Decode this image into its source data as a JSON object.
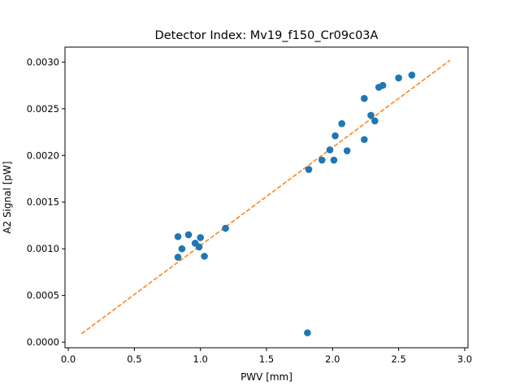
{
  "chart_data": {
    "type": "scatter",
    "title": "Detector Index: Mv19_f150_Cr09c03A",
    "xlabel": "PWV [mm]",
    "ylabel": "A2 Signal [pW]",
    "xlim": [
      -0.025,
      3.025
    ],
    "ylim": [
      -6e-05,
      0.00316
    ],
    "xticks": [
      0.0,
      0.5,
      1.0,
      1.5,
      2.0,
      2.5,
      3.0
    ],
    "xtick_labels": [
      "0.0",
      "0.5",
      "1.0",
      "1.5",
      "2.0",
      "2.5",
      "3.0"
    ],
    "yticks": [
      0.0,
      0.0005,
      0.001,
      0.0015,
      0.002,
      0.0025,
      0.003
    ],
    "ytick_labels": [
      "0.0000",
      "0.0005",
      "0.0010",
      "0.0015",
      "0.0020",
      "0.0025",
      "0.0030"
    ],
    "series": [
      {
        "name": "data",
        "kind": "scatter",
        "color": "#1f77b4",
        "points": [
          [
            0.83,
            0.00091
          ],
          [
            0.83,
            0.00113
          ],
          [
            0.86,
            0.001
          ],
          [
            0.91,
            0.00115
          ],
          [
            0.96,
            0.00106
          ],
          [
            0.99,
            0.00102
          ],
          [
            1.0,
            0.00112
          ],
          [
            1.03,
            0.00092
          ],
          [
            1.19,
            0.00122
          ],
          [
            1.81,
            0.0001
          ],
          [
            1.82,
            0.00185
          ],
          [
            1.92,
            0.00195
          ],
          [
            1.98,
            0.00206
          ],
          [
            2.01,
            0.00195
          ],
          [
            2.02,
            0.00221
          ],
          [
            2.07,
            0.00234
          ],
          [
            2.11,
            0.00205
          ],
          [
            2.24,
            0.00217
          ],
          [
            2.24,
            0.00261
          ],
          [
            2.29,
            0.00243
          ],
          [
            2.32,
            0.00237
          ],
          [
            2.35,
            0.00273
          ],
          [
            2.38,
            0.00275
          ],
          [
            2.5,
            0.00283
          ],
          [
            2.6,
            0.00286
          ]
        ]
      },
      {
        "name": "fit",
        "kind": "line",
        "style": "dashed",
        "color": "#ff7f0e",
        "points": [
          [
            0.1,
            9e-05
          ],
          [
            2.89,
            0.00302
          ]
        ]
      }
    ]
  }
}
